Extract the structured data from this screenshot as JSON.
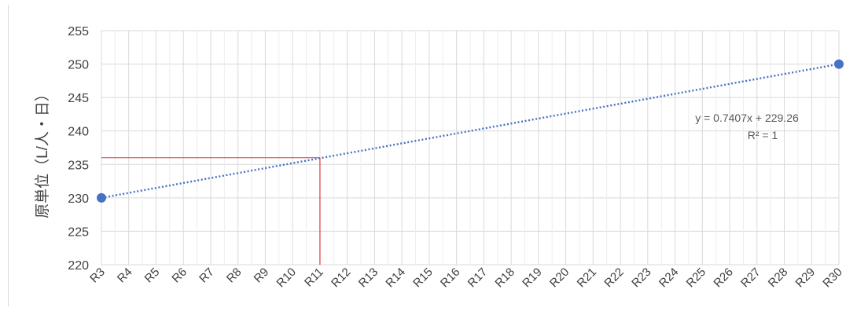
{
  "chart_data": {
    "type": "scatter",
    "title": "",
    "xlabel": "",
    "ylabel": "原単位（L/人・日）",
    "categories": [
      "R3",
      "R4",
      "R5",
      "R6",
      "R7",
      "R8",
      "R9",
      "R10",
      "R11",
      "R12",
      "R13",
      "R14",
      "R15",
      "R16",
      "R17",
      "R18",
      "R19",
      "R20",
      "R21",
      "R22",
      "R23",
      "R24",
      "R25",
      "R26",
      "R27",
      "R28",
      "R29",
      "R30"
    ],
    "ylim": [
      220,
      255
    ],
    "yticks": [
      220,
      225,
      230,
      235,
      240,
      245,
      250,
      255
    ],
    "grid": true,
    "legend": "none",
    "points": [
      {
        "x": "R3",
        "y": 230
      },
      {
        "x": "R30",
        "y": 250
      }
    ],
    "trendline": {
      "type": "linear",
      "equation": "y = 0.7407x + 229.26",
      "r_squared": "R² = 1",
      "from": "R3",
      "to": "R30",
      "y_start": 230,
      "y_end": 250
    },
    "reference_lines": {
      "x": "R11",
      "y": 236
    },
    "colors": {
      "marker": "#4472c4",
      "trendline": "#4472c4",
      "reference": "#e0393e",
      "grid": "#d9d9d9",
      "text": "#404040"
    }
  }
}
